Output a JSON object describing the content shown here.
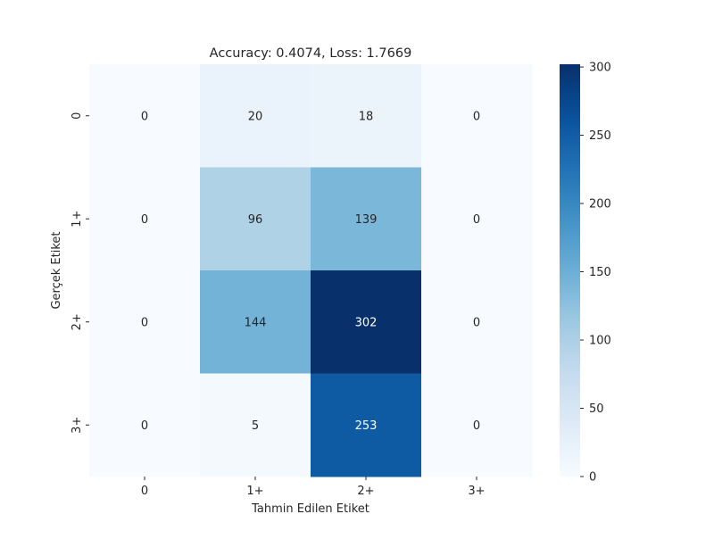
{
  "chart_data": {
    "type": "heatmap",
    "title": "Accuracy: 0.4074, Loss: 1.7669",
    "xlabel": "Tahmin Edilen Etiket",
    "ylabel": "Gerçek Etiket",
    "x_categories": [
      "0",
      "1+",
      "2+",
      "3+"
    ],
    "y_categories": [
      "0",
      "1+",
      "2+",
      "3+"
    ],
    "values": [
      [
        0,
        20,
        18,
        0
      ],
      [
        0,
        96,
        139,
        0
      ],
      [
        0,
        144,
        302,
        0
      ],
      [
        0,
        5,
        253,
        0
      ]
    ],
    "colorbar": {
      "range": [
        0,
        302
      ],
      "ticks": [
        0,
        50,
        100,
        150,
        200,
        250,
        300
      ],
      "colormap": "Blues"
    }
  }
}
